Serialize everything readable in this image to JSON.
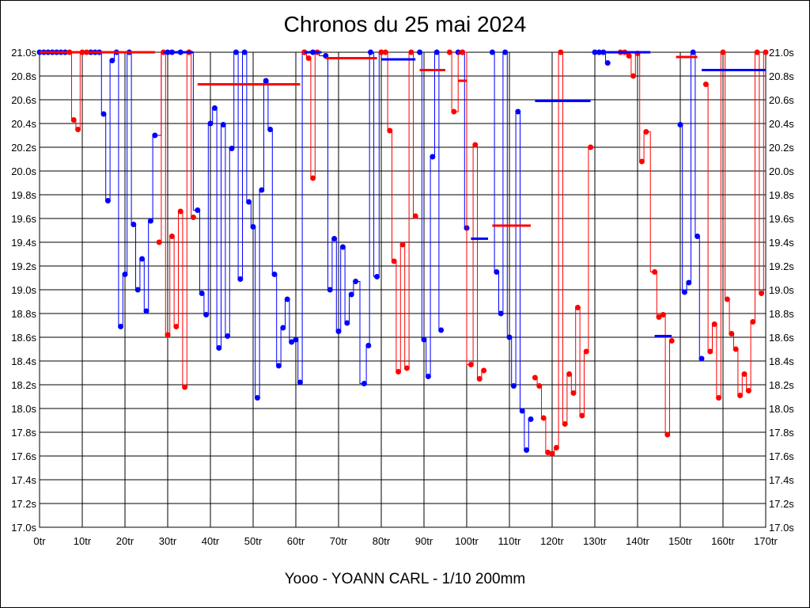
{
  "chart_data": {
    "type": "line",
    "title": "Chronos du 25 mai 2024",
    "xlabel": "Yooo - YOANN CARL - 1/10 200mm",
    "ylabel": "",
    "xlim": [
      0,
      170
    ],
    "ylim": [
      17.0,
      21.0
    ],
    "grid": true,
    "x_ticks": [
      "0tr",
      "10tr",
      "20tr",
      "30tr",
      "40tr",
      "50tr",
      "60tr",
      "70tr",
      "80tr",
      "90tr",
      "100tr",
      "110tr",
      "120tr",
      "130tr",
      "140tr",
      "150tr",
      "160tr",
      "170tr"
    ],
    "y_ticks": [
      "17.0s",
      "17.2s",
      "17.4s",
      "17.6s",
      "17.8s",
      "18.0s",
      "18.2s",
      "18.4s",
      "18.6s",
      "18.8s",
      "19.0s",
      "19.2s",
      "19.4s",
      "19.6s",
      "19.8s",
      "20.0s",
      "20.2s",
      "20.4s",
      "20.6s",
      "20.8s",
      "21.0s"
    ],
    "colors": {
      "blue": "#0000ff",
      "red": "#ff0000",
      "grid": "#000000"
    },
    "series": [
      {
        "name": "blue",
        "color": "#0000ff",
        "points": [
          [
            0,
            21.0
          ],
          [
            1,
            21.0
          ],
          [
            2,
            21.0
          ],
          [
            3,
            21.0
          ],
          [
            4,
            21.0
          ],
          [
            5,
            21.0
          ],
          [
            6,
            21.0
          ],
          [
            12,
            21.0
          ],
          [
            13,
            21.0
          ],
          [
            14,
            21.0
          ],
          [
            15,
            20.48
          ],
          [
            16,
            19.75
          ],
          [
            17,
            20.93
          ],
          [
            18,
            21.0
          ],
          [
            19,
            18.69
          ],
          [
            20,
            19.13
          ],
          [
            21,
            21.0
          ],
          [
            22,
            19.55
          ],
          [
            23,
            19.0
          ],
          [
            24,
            19.26
          ],
          [
            25,
            18.82
          ],
          [
            26,
            19.58
          ],
          [
            27,
            20.3
          ],
          [
            30,
            21.0
          ],
          [
            31,
            21.0
          ],
          [
            33,
            21.0
          ],
          [
            35,
            21.0
          ],
          [
            37,
            19.67
          ],
          [
            38,
            18.97
          ],
          [
            39,
            18.79
          ],
          [
            40,
            20.4
          ],
          [
            41,
            20.53
          ],
          [
            42,
            18.51
          ],
          [
            43,
            20.39
          ],
          [
            44,
            18.61
          ],
          [
            45,
            20.19
          ],
          [
            46,
            21.0
          ],
          [
            47,
            19.09
          ],
          [
            48,
            21.0
          ],
          [
            49,
            19.74
          ],
          [
            50,
            19.53
          ],
          [
            51,
            18.09
          ],
          [
            52,
            19.84
          ],
          [
            53,
            20.76
          ],
          [
            54,
            20.35
          ],
          [
            55,
            19.13
          ],
          [
            56,
            18.36
          ],
          [
            57,
            18.68
          ],
          [
            58,
            18.92
          ],
          [
            59,
            18.56
          ],
          [
            60,
            18.58
          ],
          [
            61,
            18.22
          ],
          [
            62,
            21.0
          ],
          [
            64,
            21.0
          ],
          [
            67,
            20.97
          ],
          [
            68,
            19.0
          ],
          [
            69,
            19.43
          ],
          [
            70,
            18.65
          ],
          [
            71,
            19.36
          ],
          [
            72,
            18.72
          ],
          [
            73,
            18.96
          ],
          [
            74,
            19.07
          ],
          [
            76,
            18.21
          ],
          [
            77,
            18.53
          ],
          [
            77.5,
            21.0
          ],
          [
            79,
            19.11
          ],
          [
            80,
            21.0
          ],
          [
            89,
            21.0
          ],
          [
            90,
            18.58
          ],
          [
            91,
            18.27
          ],
          [
            92,
            20.12
          ],
          [
            93,
            21.0
          ],
          [
            94,
            18.66
          ],
          [
            98,
            21.0
          ],
          [
            99,
            21.0
          ],
          [
            100,
            19.52
          ],
          [
            106,
            21.0
          ],
          [
            107,
            19.15
          ],
          [
            108,
            18.8
          ],
          [
            109,
            21.0
          ],
          [
            110,
            18.6
          ],
          [
            111,
            18.19
          ],
          [
            112,
            20.5
          ],
          [
            113,
            17.98
          ],
          [
            114,
            17.65
          ],
          [
            115,
            17.91
          ],
          [
            130,
            21.0
          ],
          [
            131,
            21.0
          ],
          [
            132,
            21.0
          ],
          [
            133,
            20.91
          ],
          [
            150,
            20.39
          ],
          [
            151,
            18.98
          ],
          [
            152,
            19.06
          ],
          [
            153,
            21.0
          ],
          [
            154,
            19.45
          ],
          [
            155,
            18.42
          ]
        ]
      },
      {
        "name": "red",
        "color": "#ff0000",
        "points": [
          [
            7,
            21.0
          ],
          [
            8,
            20.43
          ],
          [
            9,
            20.35
          ],
          [
            10,
            21.0
          ],
          [
            11,
            21.0
          ],
          [
            28,
            19.4
          ],
          [
            29,
            21.0
          ],
          [
            30,
            18.62
          ],
          [
            31,
            19.45
          ],
          [
            32,
            18.69
          ],
          [
            33,
            19.66
          ],
          [
            34,
            18.18
          ],
          [
            35,
            21.0
          ],
          [
            36,
            19.61
          ],
          [
            62,
            21.0
          ],
          [
            63,
            20.95
          ],
          [
            64,
            19.94
          ],
          [
            65,
            21.0
          ],
          [
            80,
            21.0
          ],
          [
            81,
            21.0
          ],
          [
            82,
            20.34
          ],
          [
            83,
            19.24
          ],
          [
            84,
            18.31
          ],
          [
            85,
            19.38
          ],
          [
            86,
            18.34
          ],
          [
            87,
            21.0
          ],
          [
            88,
            19.62
          ],
          [
            96,
            21.0
          ],
          [
            97,
            20.5
          ],
          [
            99,
            21.0
          ],
          [
            101,
            18.37
          ],
          [
            102,
            20.22
          ],
          [
            103,
            18.25
          ],
          [
            104,
            18.32
          ],
          [
            116,
            18.26
          ],
          [
            117,
            18.19
          ],
          [
            118,
            17.92
          ],
          [
            119,
            17.63
          ],
          [
            120,
            17.62
          ],
          [
            121,
            17.67
          ],
          [
            122,
            21.0
          ],
          [
            123,
            17.87
          ],
          [
            124,
            18.29
          ],
          [
            125,
            18.13
          ],
          [
            126,
            18.85
          ],
          [
            127,
            17.94
          ],
          [
            128,
            18.48
          ],
          [
            129,
            20.2
          ],
          [
            136,
            21.0
          ],
          [
            137,
            21.0
          ],
          [
            138,
            20.97
          ],
          [
            139,
            20.8
          ],
          [
            140,
            20.99
          ],
          [
            141,
            20.08
          ],
          [
            142,
            20.33
          ],
          [
            144,
            19.15
          ],
          [
            145,
            18.77
          ],
          [
            146,
            18.79
          ],
          [
            147,
            17.78
          ],
          [
            148,
            18.57
          ],
          [
            156,
            20.73
          ],
          [
            157,
            18.48
          ],
          [
            158,
            18.71
          ],
          [
            159,
            18.09
          ],
          [
            160,
            21.0
          ],
          [
            161,
            18.92
          ],
          [
            162,
            18.63
          ],
          [
            163,
            18.5
          ],
          [
            164,
            18.11
          ],
          [
            165,
            18.29
          ],
          [
            166,
            18.15
          ],
          [
            167,
            18.73
          ],
          [
            168,
            21.0
          ],
          [
            169,
            18.97
          ],
          [
            170,
            21.0
          ]
        ]
      }
    ],
    "mean_lines": [
      {
        "color": "#ff0000",
        "x": [
          0,
          27
        ],
        "y": 21.0
      },
      {
        "color": "#0000ff",
        "x": [
          29,
          36
        ],
        "y": 21.0
      },
      {
        "color": "#ff0000",
        "x": [
          37,
          61
        ],
        "y": 20.73
      },
      {
        "color": "#0000ff",
        "x": [
          62,
          66
        ],
        "y": 21.0
      },
      {
        "color": "#ff0000",
        "x": [
          67,
          79
        ],
        "y": 20.95
      },
      {
        "color": "#0000ff",
        "x": [
          80,
          88
        ],
        "y": 20.94
      },
      {
        "color": "#ff0000",
        "x": [
          89,
          95
        ],
        "y": 20.85
      },
      {
        "color": "#ff0000",
        "x": [
          98,
          100
        ],
        "y": 20.76
      },
      {
        "color": "#0000ff",
        "x": [
          101,
          105
        ],
        "y": 19.43
      },
      {
        "color": "#ff0000",
        "x": [
          106,
          115
        ],
        "y": 19.54
      },
      {
        "color": "#0000ff",
        "x": [
          116,
          129
        ],
        "y": 20.59
      },
      {
        "color": "#0000ff",
        "x": [
          130,
          143
        ],
        "y": 21.0
      },
      {
        "color": "#0000ff",
        "x": [
          144,
          148
        ],
        "y": 18.61
      },
      {
        "color": "#ff0000",
        "x": [
          149,
          154
        ],
        "y": 20.96
      },
      {
        "color": "#0000ff",
        "x": [
          155,
          170
        ],
        "y": 20.85
      }
    ]
  }
}
